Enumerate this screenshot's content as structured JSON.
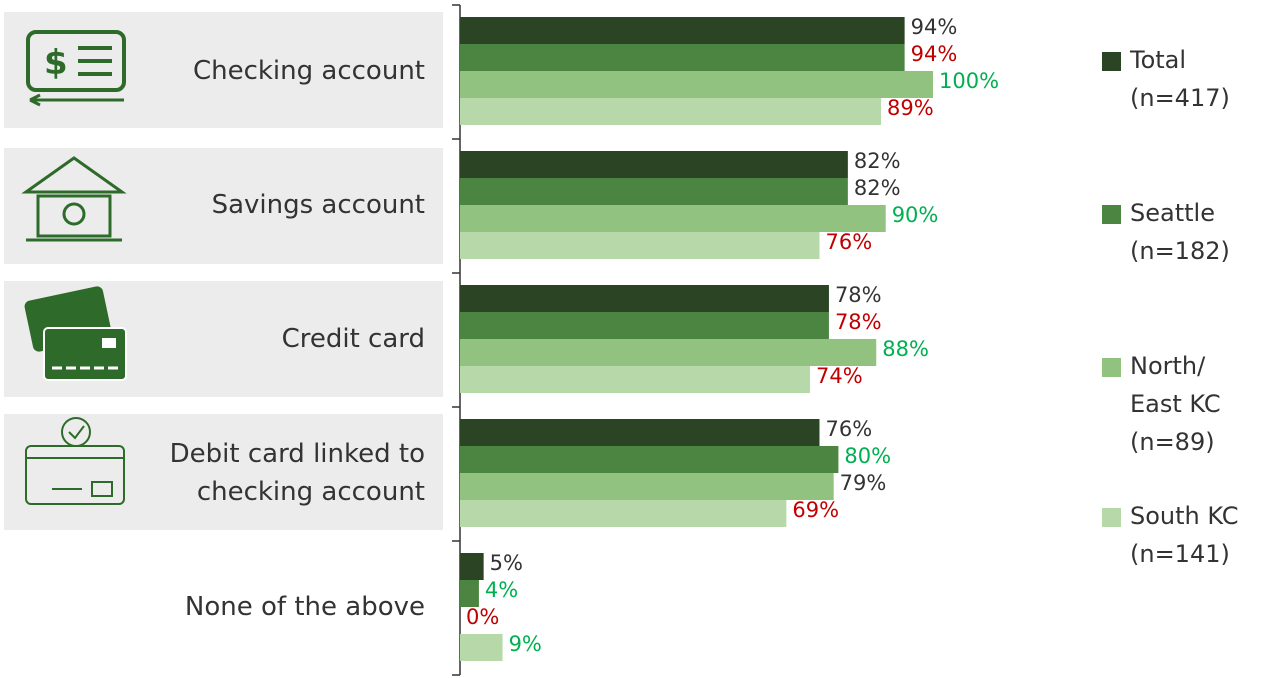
{
  "chart_data": {
    "type": "bar",
    "orientation": "horizontal",
    "categories": [
      "Checking account",
      "Savings account",
      "Credit card",
      "Debit card linked to\nchecking account",
      "None of the above"
    ],
    "xlim": [
      0,
      100
    ],
    "series": [
      {
        "name": "Total\n(n=417)",
        "color": "#2a4424",
        "values": [
          94,
          82,
          78,
          76,
          5
        ],
        "value_labels": [
          "94%",
          "82%",
          "78%",
          "76%",
          "5%"
        ],
        "value_label_colors": [
          "#333333",
          "#333333",
          "#333333",
          "#333333",
          "#333333"
        ]
      },
      {
        "name": "Seattle\n(n=182)",
        "color": "#4b8541",
        "values": [
          94,
          82,
          78,
          80,
          4
        ],
        "value_labels": [
          "94%",
          "82%",
          "78%",
          "80%",
          "4%"
        ],
        "value_label_colors": [
          "#c00000",
          "#333333",
          "#c00000",
          "#00b050",
          "#00b050"
        ]
      },
      {
        "name": "North/\nEast KC\n(n=89)",
        "color": "#92c27f",
        "values": [
          100,
          90,
          88,
          79,
          0
        ],
        "value_labels": [
          "100%",
          "90%",
          "88%",
          "79%",
          "0%"
        ],
        "value_label_colors": [
          "#00b050",
          "#00b050",
          "#00b050",
          "#333333",
          "#c00000"
        ]
      },
      {
        "name": "South KC\n(n=141)",
        "color": "#b7d9aa",
        "values": [
          89,
          76,
          74,
          69,
          9
        ],
        "value_labels": [
          "89%",
          "76%",
          "74%",
          "69%",
          "9%"
        ],
        "value_label_colors": [
          "#c00000",
          "#c00000",
          "#c00000",
          "#c00000",
          "#00b050"
        ]
      }
    ]
  }
}
